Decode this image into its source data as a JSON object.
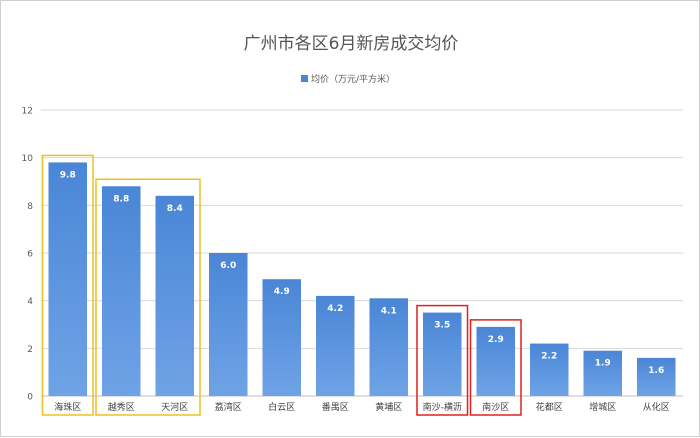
{
  "chart_data": {
    "type": "bar",
    "title": "广州市各区6月新房成交均价",
    "legend": {
      "label": "均价（万元/平方米）",
      "placement": "top",
      "color": "#4a86d6"
    },
    "xlabel": "",
    "ylabel": "",
    "ylim": [
      0,
      12
    ],
    "yticks": [
      "0",
      "2",
      "4",
      "6",
      "8",
      "10",
      "12"
    ],
    "grid": true,
    "categories": [
      "海珠区",
      "越秀区",
      "天河区",
      "荔湾区",
      "白云区",
      "番禺区",
      "黄埔区",
      "南沙-横沥",
      "南沙区",
      "花都区",
      "增城区",
      "从化区"
    ],
    "series": [
      {
        "name": "均价（万元/平方米）",
        "values": [
          9.8,
          8.8,
          8.4,
          6.0,
          4.9,
          4.2,
          4.1,
          3.5,
          2.9,
          2.2,
          1.9,
          1.6
        ]
      }
    ],
    "data_labels": [
      "9.8",
      "8.8",
      "8.4",
      "6.0",
      "4.9",
      "4.2",
      "4.1",
      "3.5",
      "2.9",
      "2.2",
      "1.9",
      "1.6"
    ],
    "highlight_groups": [
      {
        "color": "#f0c020",
        "categories": [
          "海珠区"
        ]
      },
      {
        "color": "#f0c020",
        "categories": [
          "越秀区",
          "天河区"
        ]
      },
      {
        "color": "#e02020",
        "categories": [
          "南沙-横沥"
        ]
      },
      {
        "color": "#e02020",
        "categories": [
          "南沙区"
        ]
      }
    ]
  }
}
